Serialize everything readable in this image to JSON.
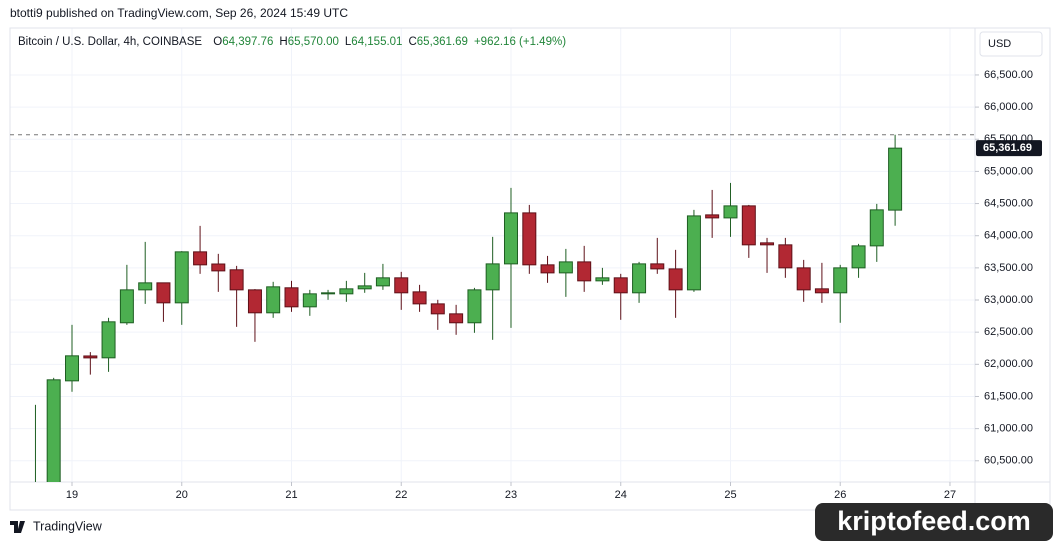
{
  "header": {
    "byline": "btotti9 published on TradingView.com, Sep 26, 2024 15:49 UTC"
  },
  "chart_data": {
    "type": "candlestick",
    "title": "Bitcoin / U.S. Dollar, 4h, COINBASE",
    "ohlc_legend": [
      {
        "key": "O",
        "value": "64,397.76"
      },
      {
        "key": "H",
        "value": "65,570.00"
      },
      {
        "key": "L",
        "value": "64,155.01"
      },
      {
        "key": "C",
        "value": "65,361.69"
      }
    ],
    "change": "+962.16 (+1.49%)",
    "currency": "USD",
    "last_label": "65,361.69",
    "x": [
      18.667,
      18.833,
      19,
      19.167,
      19.333,
      19.5,
      19.667,
      19.833,
      20,
      20.167,
      20.333,
      20.5,
      20.667,
      20.833,
      21,
      21.167,
      21.333,
      21.5,
      21.667,
      21.833,
      22,
      22.167,
      22.333,
      22.5,
      22.667,
      22.833,
      23,
      23.167,
      23.333,
      23.5,
      23.667,
      23.833,
      24,
      24.167,
      24.333,
      24.5,
      24.667,
      24.833,
      25,
      25.167,
      25.333,
      25.5,
      25.667,
      25.833,
      26,
      26.167,
      26.333,
      26.5
    ],
    "open": [
      59900,
      60000,
      61743,
      62130,
      62101,
      62646,
      63158,
      63267,
      62956,
      63749,
      63560,
      63470,
      63158,
      62801,
      63190,
      62894,
      63096,
      63096,
      63174,
      63220,
      63345,
      63127,
      62940,
      62785,
      62646,
      63158,
      63562,
      64355,
      63547,
      63422,
      63593,
      63298,
      63345,
      63112,
      63562,
      63484,
      63158,
      64324,
      64277,
      64464,
      63889,
      63858,
      63500,
      63174,
      63112,
      63500,
      63842,
      64397.76
    ],
    "high": [
      61370,
      61790,
      62614,
      62190,
      62723,
      63547,
      63904,
      63270,
      63760,
      64153,
      63718,
      63531,
      63170,
      63283,
      63298,
      63158,
      63158,
      63298,
      63422,
      63562,
      63438,
      63236,
      63003,
      62925,
      63189,
      63982,
      64744,
      64479,
      63686,
      63795,
      63842,
      63500,
      63407,
      63593,
      63966,
      63780,
      64402,
      64712,
      64821,
      64479,
      63966,
      63966,
      63624,
      63578,
      63547,
      63873,
      64495,
      65570
    ],
    "low": [
      59800,
      59900,
      61573,
      61840,
      61883,
      62614,
      62940,
      62661,
      62614,
      63407,
      63127,
      62583,
      62350,
      62723,
      62816,
      62754,
      63003,
      62972,
      63112,
      63158,
      62847,
      62816,
      62536,
      62459,
      62490,
      62381,
      62567,
      63407,
      63267,
      63049,
      63127,
      63236,
      62692,
      62956,
      63407,
      62723,
      63127,
      63966,
      63982,
      63655,
      63422,
      63345,
      62972,
      62956,
      62646,
      63345,
      63593,
      64155.01
    ],
    "close": [
      60100,
      61759,
      62132,
      62100,
      62661,
      63158,
      63267,
      62956,
      63749,
      63547,
      63453,
      63158,
      62801,
      63205,
      62894,
      63096,
      63112,
      63174,
      63220,
      63345,
      63112,
      62940,
      62785,
      62646,
      63158,
      63562,
      64355,
      63547,
      63422,
      63593,
      63298,
      63345,
      63112,
      63562,
      63484,
      63158,
      64308,
      64277,
      64464,
      63858,
      63858,
      63500,
      63158,
      63112,
      63500,
      63842,
      64402,
      65361.69
    ],
    "up_color": "#4caf50",
    "down_color": "#b22833",
    "xlim": [
      18.435,
      27.228
    ],
    "xticks": [
      19,
      20,
      21,
      22,
      23,
      24,
      25,
      26,
      27
    ],
    "ylim": [
      60170,
      67230
    ],
    "yticks": [
      {
        "value": 60500,
        "label": "60,500.00"
      },
      {
        "value": 61000,
        "label": "61,000.00"
      },
      {
        "value": 61500,
        "label": "61,500.00"
      },
      {
        "value": 62000,
        "label": "62,000.00"
      },
      {
        "value": 62500,
        "label": "62,500.00"
      },
      {
        "value": 63000,
        "label": "63,000.00"
      },
      {
        "value": 63500,
        "label": "63,500.00"
      },
      {
        "value": 64000,
        "label": "64,000.00"
      },
      {
        "value": 64500,
        "label": "64,500.00"
      },
      {
        "value": 65000,
        "label": "65,000.00"
      },
      {
        "value": 65500,
        "label": "65,500.00"
      },
      {
        "value": 66000,
        "label": "66,000.00"
      },
      {
        "value": 66500,
        "label": "66,500.00"
      }
    ],
    "grid": true
  },
  "footer": {
    "brand": "TradingView",
    "watermark": "kriptofeed.com"
  }
}
